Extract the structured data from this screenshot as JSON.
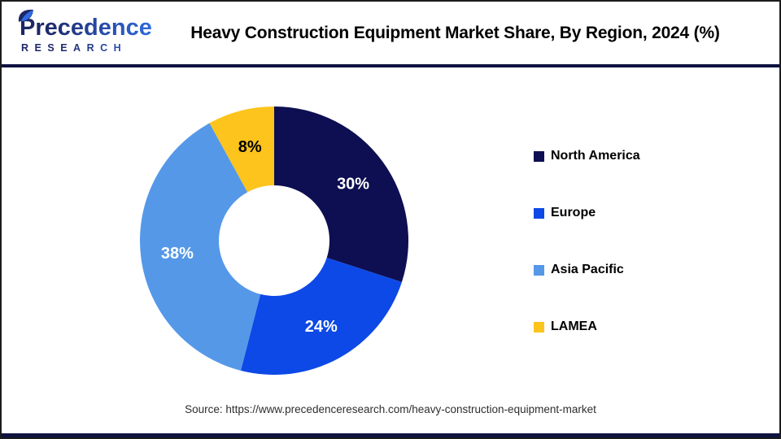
{
  "theme": {
    "navy": "#0E1240",
    "brand_dark": "#1d2766",
    "brand_blue": "#2f6be0"
  },
  "header": {
    "logo_line1": "Precedence",
    "logo_line2": "RESEARCH",
    "title": "Heavy Construction Equipment Market Share, By Region, 2024 (%)"
  },
  "chart_data": {
    "type": "pie",
    "subtype": "donut",
    "title": "Heavy Construction Equipment Market Share, By Region, 2024 (%)",
    "categories": [
      "North America",
      "Europe",
      "Asia Pacific",
      "LAMEA"
    ],
    "values": [
      30,
      24,
      38,
      8
    ],
    "unit": "%",
    "labels": [
      "30%",
      "24%",
      "38%",
      "8%"
    ],
    "colors": [
      "#0E0E52",
      "#0D49E7",
      "#5598E8",
      "#FCC41C"
    ],
    "label_colors": [
      "#FFFFFF",
      "#FFFFFF",
      "#FFFFFF",
      "#000000"
    ],
    "start_angle_deg": 0,
    "direction": "clockwise",
    "inner_radius_ratio": 0.41,
    "legend_position": "right",
    "grid": false
  },
  "footer": {
    "source": "Source: https://www.precedenceresearch.com/heavy-construction-equipment-market"
  }
}
